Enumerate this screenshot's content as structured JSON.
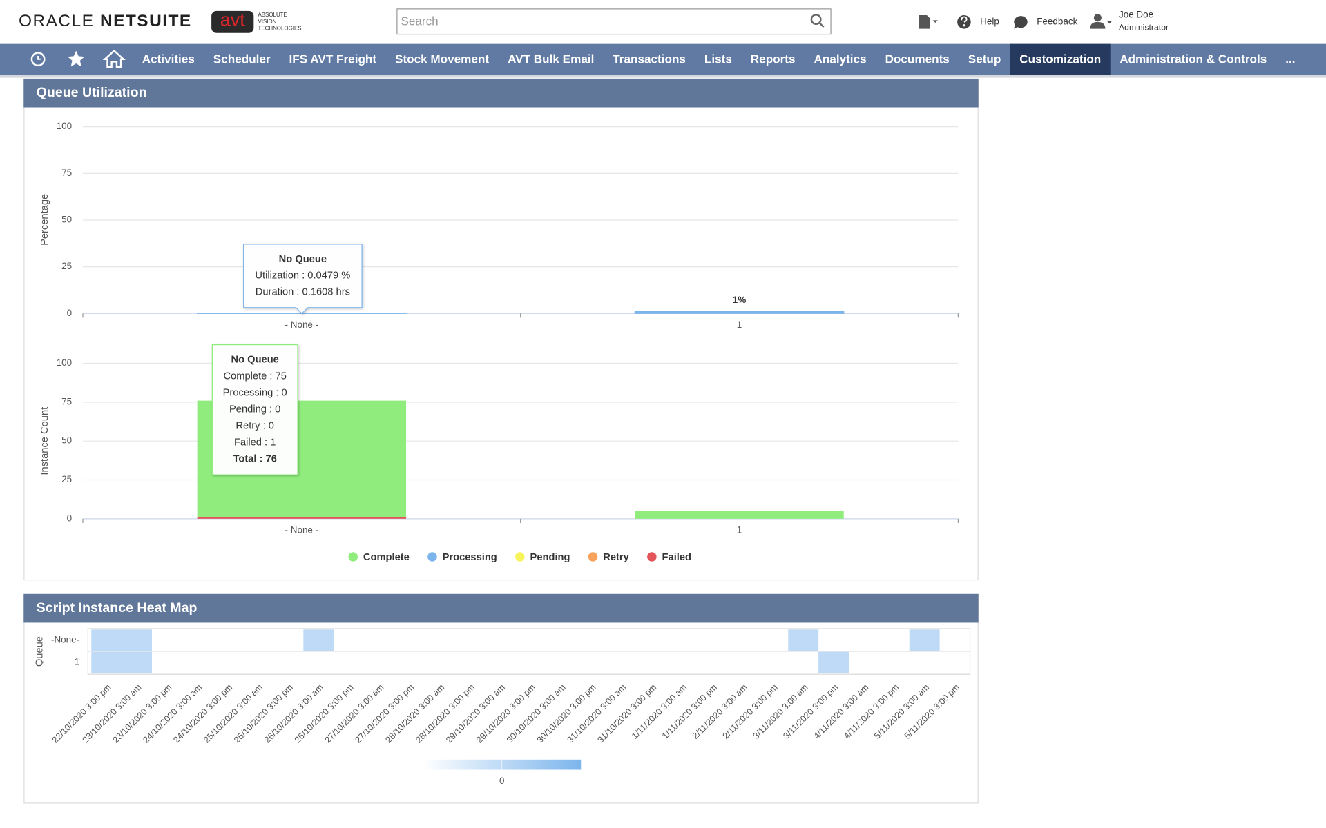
{
  "header": {
    "logo": [
      "ORACLE",
      "NETSUITE"
    ],
    "brand": "avt",
    "brand_tagline": [
      "ABSOLUTE",
      "VISION",
      "TECHNOLOGIES"
    ],
    "search_placeholder": "Search",
    "help": "Help",
    "feedback": "Feedback",
    "user_name": "Joe Doe",
    "user_role": "Administrator"
  },
  "nav": {
    "items": [
      "Activities",
      "Scheduler",
      "IFS AVT Freight",
      "Stock Movement",
      "AVT Bulk Email",
      "Transactions",
      "Lists",
      "Reports",
      "Analytics",
      "Documents",
      "Setup",
      "Customization",
      "Administration & Controls",
      "..."
    ],
    "active": 11
  },
  "panels": [
    {
      "title": "Queue Utilization"
    },
    {
      "title": "Script Instance Heat Map"
    }
  ],
  "tooltips": [
    {
      "title": "No Queue",
      "rows": [
        "Utilization : 0.0479 %",
        "Duration : 0.1608 hrs"
      ]
    },
    {
      "title": "No Queue",
      "rows": [
        "Complete : 75",
        "Processing : 0",
        "Pending : 0",
        "Retry : 0",
        "Failed : 1",
        "Total : 76"
      ]
    }
  ],
  "chart_data": [
    {
      "type": "bar",
      "y_label": "Percentage",
      "categories": [
        "- None -",
        "1"
      ],
      "values": [
        0.0479,
        1
      ],
      "value_labels": [
        null,
        "1%"
      ],
      "color": "#7cb5ec",
      "ylim": [
        0,
        100
      ],
      "yticks": [
        0,
        25,
        50,
        75,
        100
      ],
      "grid": true
    },
    {
      "type": "stacked_bar",
      "y_label": "Instance Count",
      "categories": [
        "- None -",
        "1"
      ],
      "series": [
        {
          "name": "Complete",
          "color": "#90ed7d",
          "values": [
            75,
            5
          ]
        },
        {
          "name": "Processing",
          "color": "#7cb5ec",
          "values": [
            0,
            0
          ]
        },
        {
          "name": "Pending",
          "color": "#f7f35a",
          "values": [
            0,
            0
          ]
        },
        {
          "name": "Retry",
          "color": "#f7a35c",
          "values": [
            0,
            0
          ]
        },
        {
          "name": "Failed",
          "color": "#e4555a",
          "values": [
            1,
            0
          ]
        }
      ],
      "ylim": [
        0,
        100
      ],
      "yticks": [
        0,
        25,
        50,
        75,
        100
      ],
      "grid": true,
      "legend": "bottom"
    },
    {
      "type": "heatmap",
      "y_label": "Queue",
      "rows": [
        "-None-",
        "1"
      ],
      "columns": [
        "22/10/2020 3:00 pm",
        "23/10/2020 3:00 am",
        "23/10/2020 3:00 pm",
        "24/10/2020 3:00 am",
        "24/10/2020 3:00 pm",
        "25/10/2020 3:00 am",
        "25/10/2020 3:00 pm",
        "26/10/2020 3:00 am",
        "26/10/2020 3:00 pm",
        "27/10/2020 3:00 am",
        "27/10/2020 3:00 pm",
        "28/10/2020 3:00 am",
        "28/10/2020 3:00 pm",
        "29/10/2020 3:00 am",
        "29/10/2020 3:00 pm",
        "30/10/2020 3:00 am",
        "30/10/2020 3:00 pm",
        "31/10/2020 3:00 am",
        "31/10/2020 3:00 pm",
        "1/11/2020 3:00 am",
        "1/11/2020 3:00 pm",
        "2/11/2020 3:00 am",
        "2/11/2020 3:00 pm",
        "3/11/2020 3:00 am",
        "3/11/2020 3:00 pm",
        "4/11/2020 3:00 am",
        "4/11/2020 3:00 pm",
        "5/11/2020 3:00 am",
        "5/11/2020 3:00 pm"
      ],
      "values": [
        [
          0,
          0,
          null,
          null,
          null,
          null,
          null,
          0,
          null,
          null,
          null,
          null,
          null,
          null,
          null,
          null,
          null,
          null,
          null,
          null,
          null,
          null,
          null,
          0,
          null,
          null,
          null,
          0,
          null
        ],
        [
          0,
          0,
          null,
          null,
          null,
          null,
          null,
          null,
          null,
          null,
          null,
          null,
          null,
          null,
          null,
          null,
          null,
          null,
          null,
          null,
          null,
          null,
          null,
          null,
          0,
          null,
          null,
          null,
          null
        ]
      ],
      "clim": [
        -1,
        1
      ],
      "colors": [
        "#ffffff",
        "#7cb5ec"
      ],
      "colorbar_ticks": [
        0
      ]
    }
  ]
}
